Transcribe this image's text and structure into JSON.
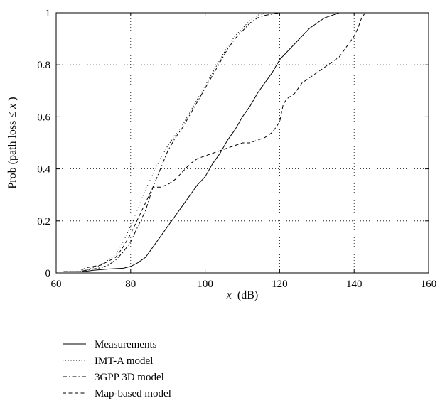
{
  "chart_data": {
    "type": "line",
    "title": "",
    "xlabel_var": "x",
    "xlabel_unit": "(dB)",
    "ylabel_text": "Prob (path loss ≤ ",
    "ylabel_var": "x",
    "ylabel_close": ")",
    "xlim": [
      60,
      160
    ],
    "ylim": [
      0,
      1
    ],
    "xticks": [
      60,
      80,
      100,
      120,
      140,
      160
    ],
    "yticks": [
      0,
      0.2,
      0.4,
      0.6,
      0.8,
      1
    ],
    "xtick_labels": [
      "60",
      "80",
      "100",
      "120",
      "140",
      "160"
    ],
    "ytick_labels": [
      "0",
      "0.2",
      "0.4",
      "0.6",
      "0.8",
      "1"
    ],
    "grid": true,
    "legend_position": "below",
    "series": [
      {
        "name": "Measurements",
        "dash": "solid",
        "points": [
          [
            62,
            0.005
          ],
          [
            67,
            0.005
          ],
          [
            70,
            0.01
          ],
          [
            74,
            0.015
          ],
          [
            78,
            0.018
          ],
          [
            80,
            0.025
          ],
          [
            82,
            0.04
          ],
          [
            84,
            0.06
          ],
          [
            86,
            0.1
          ],
          [
            88,
            0.14
          ],
          [
            90,
            0.18
          ],
          [
            92,
            0.22
          ],
          [
            94,
            0.26
          ],
          [
            96,
            0.3
          ],
          [
            98,
            0.34
          ],
          [
            100,
            0.37
          ],
          [
            102,
            0.42
          ],
          [
            104,
            0.46
          ],
          [
            106,
            0.51
          ],
          [
            108,
            0.55
          ],
          [
            110,
            0.6
          ],
          [
            112,
            0.64
          ],
          [
            114,
            0.69
          ],
          [
            116,
            0.73
          ],
          [
            118,
            0.77
          ],
          [
            120,
            0.82
          ],
          [
            122,
            0.85
          ],
          [
            124,
            0.88
          ],
          [
            126,
            0.91
          ],
          [
            128,
            0.94
          ],
          [
            130,
            0.96
          ],
          [
            132,
            0.98
          ],
          [
            134,
            0.99
          ],
          [
            136,
            1.0
          ],
          [
            138,
            1.0
          ]
        ]
      },
      {
        "name": "IMT-A model",
        "dash": "dotted",
        "points": [
          [
            62,
            0.005
          ],
          [
            66,
            0.005
          ],
          [
            68,
            0.01
          ],
          [
            72,
            0.03
          ],
          [
            76,
            0.07
          ],
          [
            78,
            0.12
          ],
          [
            80,
            0.18
          ],
          [
            82,
            0.25
          ],
          [
            84,
            0.32
          ],
          [
            86,
            0.38
          ],
          [
            88,
            0.44
          ],
          [
            90,
            0.49
          ],
          [
            92,
            0.53
          ],
          [
            94,
            0.57
          ],
          [
            96,
            0.62
          ],
          [
            98,
            0.67
          ],
          [
            100,
            0.72
          ],
          [
            102,
            0.77
          ],
          [
            104,
            0.82
          ],
          [
            106,
            0.87
          ],
          [
            108,
            0.91
          ],
          [
            110,
            0.94
          ],
          [
            112,
            0.97
          ],
          [
            114,
            0.99
          ],
          [
            116,
            1.0
          ],
          [
            118,
            1.0
          ]
        ]
      },
      {
        "name": "3GPP 3D model",
        "dash": "dashdot",
        "points": [
          [
            62,
            0.005
          ],
          [
            66,
            0.005
          ],
          [
            68,
            0.01
          ],
          [
            72,
            0.02
          ],
          [
            74,
            0.03
          ],
          [
            76,
            0.05
          ],
          [
            78,
            0.08
          ],
          [
            80,
            0.12
          ],
          [
            82,
            0.18
          ],
          [
            84,
            0.24
          ],
          [
            86,
            0.33
          ],
          [
            88,
            0.4
          ],
          [
            90,
            0.47
          ],
          [
            92,
            0.52
          ],
          [
            94,
            0.56
          ],
          [
            96,
            0.61
          ],
          [
            98,
            0.66
          ],
          [
            100,
            0.71
          ],
          [
            102,
            0.76
          ],
          [
            104,
            0.81
          ],
          [
            106,
            0.86
          ],
          [
            108,
            0.9
          ],
          [
            110,
            0.93
          ],
          [
            112,
            0.96
          ],
          [
            114,
            0.98
          ],
          [
            116,
            0.99
          ],
          [
            118,
            0.995
          ],
          [
            120,
            1.0
          ]
        ]
      },
      {
        "name": "Map-based model",
        "dash": "dashed",
        "points": [
          [
            62,
            0.005
          ],
          [
            66,
            0.005
          ],
          [
            68,
            0.02
          ],
          [
            72,
            0.03
          ],
          [
            76,
            0.06
          ],
          [
            78,
            0.1
          ],
          [
            80,
            0.15
          ],
          [
            82,
            0.21
          ],
          [
            84,
            0.27
          ],
          [
            86,
            0.33
          ],
          [
            88,
            0.33
          ],
          [
            90,
            0.34
          ],
          [
            92,
            0.36
          ],
          [
            94,
            0.39
          ],
          [
            96,
            0.42
          ],
          [
            98,
            0.44
          ],
          [
            100,
            0.45
          ],
          [
            102,
            0.46
          ],
          [
            104,
            0.47
          ],
          [
            106,
            0.48
          ],
          [
            108,
            0.49
          ],
          [
            110,
            0.5
          ],
          [
            112,
            0.5
          ],
          [
            114,
            0.51
          ],
          [
            116,
            0.52
          ],
          [
            118,
            0.54
          ],
          [
            120,
            0.58
          ],
          [
            121,
            0.65
          ],
          [
            122,
            0.67
          ],
          [
            124,
            0.69
          ],
          [
            126,
            0.73
          ],
          [
            128,
            0.75
          ],
          [
            130,
            0.77
          ],
          [
            132,
            0.79
          ],
          [
            134,
            0.81
          ],
          [
            136,
            0.83
          ],
          [
            138,
            0.87
          ],
          [
            140,
            0.91
          ],
          [
            141,
            0.94
          ],
          [
            142,
            0.98
          ],
          [
            143,
            1.0
          ]
        ]
      }
    ]
  }
}
